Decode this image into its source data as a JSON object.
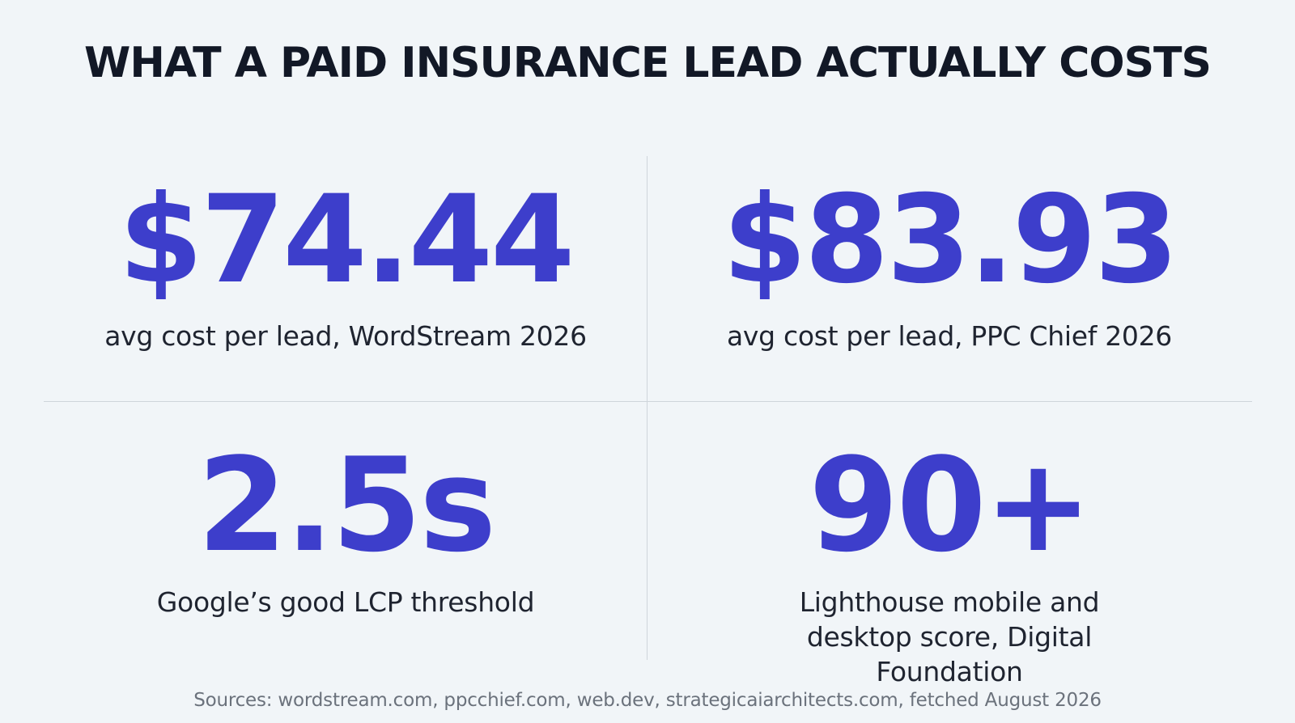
{
  "title": "WHAT A PAID INSURANCE LEAD ACTUALLY COSTS",
  "colors": {
    "background": "#f1f5f8",
    "accent": "#3d3ecb",
    "text": "#1f2430",
    "muted": "#6b727c",
    "divider": "#cfd5db"
  },
  "stats": [
    {
      "value": "$74.44",
      "label": "avg cost per lead, WordStream 2026"
    },
    {
      "value": "$83.93",
      "label": "avg cost per lead, PPC Chief 2026"
    },
    {
      "value": "2.5s",
      "label": "Google’s good LCP threshold"
    },
    {
      "value": "90+",
      "label": "Lighthouse mobile and desktop score, Digital Foundation"
    }
  ],
  "sources": "Sources: wordstream.com, ppcchief.com, web.dev, strategicaiarchitects.com, fetched August 2026"
}
